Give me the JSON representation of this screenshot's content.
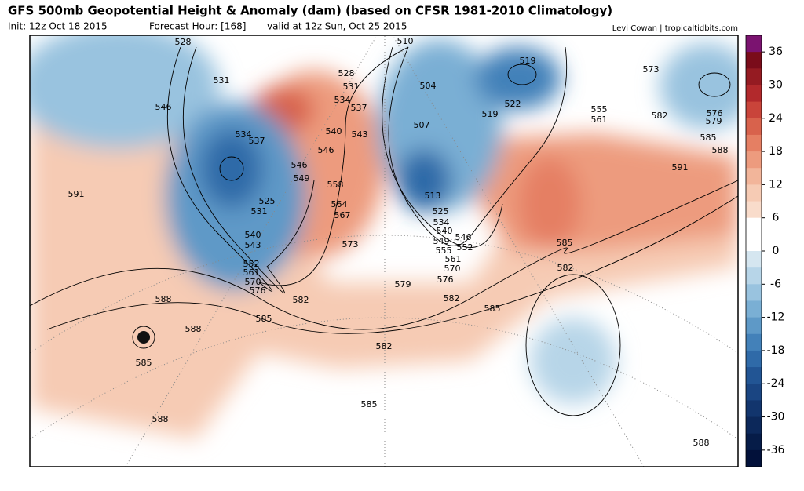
{
  "header": {
    "title": "GFS 500mb Geopotential Height & Anomaly (dam) (based on CFSR 1981-2010 Climatology)",
    "init": "Init: 12z Oct 18 2015",
    "forecast_hour": "Forecast Hour: [168]",
    "valid": "valid at 12z Sun, Oct 25 2015",
    "credit": "Levi Cowan | tropicaltidbits.com"
  },
  "colorbar": {
    "lim": [
      -39,
      39
    ],
    "ticks": [
      36,
      30,
      24,
      18,
      12,
      6,
      0,
      -6,
      -12,
      -18,
      -24,
      -30,
      -36
    ],
    "colors": [
      "#7b1370",
      "#7a0c1a",
      "#951b22",
      "#b2292c",
      "#c9443a",
      "#d8624c",
      "#e57f63",
      "#ed9b7e",
      "#f2b59a",
      "#f6cbb4",
      "#f9dccb",
      "#ffffff",
      "#ffffff",
      "#d5e6f0",
      "#b7d5e8",
      "#99c3df",
      "#7aafd4",
      "#5e99c7",
      "#4381b9",
      "#2f6aa8",
      "#225594",
      "#1a4582",
      "#12356d",
      "#0c285a",
      "#061c48",
      "#02113a"
    ]
  },
  "contour_labels": [
    528,
    531,
    546,
    534,
    537,
    525,
    531,
    540,
    543,
    552,
    561,
    570,
    576,
    591,
    588,
    588,
    585,
    585,
    588,
    582,
    573,
    579,
    576,
    582,
    585,
    582,
    585,
    585,
    582,
    591,
    588,
    585,
    582,
    573,
    576,
    579,
    555,
    561,
    519,
    522,
    519,
    510,
    504,
    507,
    513,
    525,
    534,
    540,
    546,
    549,
    555,
    552,
    561,
    570,
    528,
    531,
    534,
    537,
    540,
    543,
    546,
    546,
    549,
    558,
    564,
    567,
    588
  ]
}
